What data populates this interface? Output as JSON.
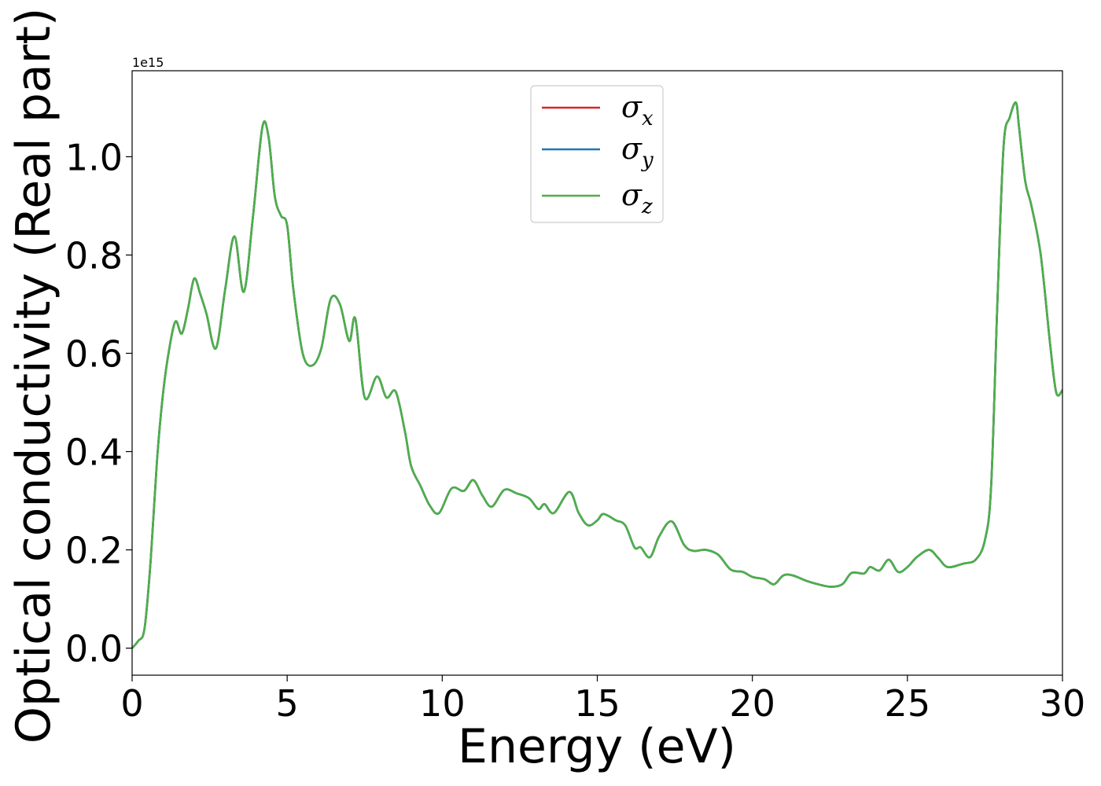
{
  "chart_data": {
    "type": "line",
    "xlabel": "Energy (eV)",
    "ylabel": "Optical conductivity (Real part)",
    "y_offset_text": "1e15",
    "xlim": [
      0,
      30
    ],
    "ylim": [
      -0.055,
      1.175
    ],
    "x_ticks": [
      0,
      5,
      10,
      15,
      20,
      25,
      30
    ],
    "x_tick_labels": [
      "0",
      "5",
      "10",
      "15",
      "20",
      "25",
      "30"
    ],
    "y_ticks": [
      0.0,
      0.2,
      0.4,
      0.6,
      0.8,
      1.0
    ],
    "y_tick_labels": [
      "0.0",
      "0.2",
      "0.4",
      "0.6",
      "0.8",
      "1.0"
    ],
    "grid": false,
    "legend_position": "top-center",
    "series": [
      {
        "name": "σ",
        "subscript": "x",
        "color": "#d62728"
      },
      {
        "name": "σ",
        "subscript": "y",
        "color": "#1f77b4"
      },
      {
        "name": "σ",
        "subscript": "z",
        "color": "#4daf4a"
      }
    ],
    "x": [
      0,
      0.2,
      0.4,
      0.6,
      0.8,
      1.0,
      1.2,
      1.4,
      1.6,
      1.8,
      2.0,
      2.2,
      2.4,
      2.7,
      3.0,
      3.3,
      3.6,
      3.9,
      4.2,
      4.4,
      4.6,
      4.8,
      5.0,
      5.2,
      5.5,
      5.8,
      6.1,
      6.4,
      6.7,
      7.0,
      7.2,
      7.5,
      7.9,
      8.2,
      8.5,
      8.8,
      9.0,
      9.3,
      9.6,
      9.9,
      10.3,
      10.7,
      11.0,
      11.3,
      11.6,
      12.0,
      12.4,
      12.8,
      13.1,
      13.3,
      13.6,
      14.1,
      14.4,
      14.7,
      15.0,
      15.2,
      15.6,
      15.9,
      16.2,
      16.4,
      16.7,
      17.0,
      17.4,
      17.8,
      18.1,
      18.5,
      18.9,
      19.3,
      19.7,
      20.0,
      20.4,
      20.7,
      21.0,
      21.3,
      21.7,
      22.0,
      22.5,
      22.9,
      23.2,
      23.6,
      23.8,
      24.1,
      24.4,
      24.7,
      25.0,
      25.3,
      25.7,
      26.0,
      26.3,
      26.8,
      27.2,
      27.5,
      27.7,
      27.9,
      28.1,
      28.3,
      28.5,
      28.6,
      28.8,
      29.0,
      29.3,
      29.6,
      29.8,
      30.0
    ],
    "values": [
      0.0,
      0.015,
      0.04,
      0.18,
      0.38,
      0.52,
      0.61,
      0.665,
      0.64,
      0.69,
      0.752,
      0.72,
      0.68,
      0.61,
      0.73,
      0.838,
      0.725,
      0.88,
      1.06,
      1.04,
      0.92,
      0.88,
      0.86,
      0.73,
      0.6,
      0.575,
      0.61,
      0.71,
      0.7,
      0.625,
      0.67,
      0.51,
      0.553,
      0.51,
      0.522,
      0.44,
      0.37,
      0.33,
      0.29,
      0.275,
      0.325,
      0.32,
      0.342,
      0.31,
      0.288,
      0.322,
      0.315,
      0.305,
      0.283,
      0.293,
      0.275,
      0.318,
      0.275,
      0.25,
      0.26,
      0.273,
      0.26,
      0.25,
      0.205,
      0.205,
      0.185,
      0.228,
      0.258,
      0.21,
      0.198,
      0.2,
      0.19,
      0.16,
      0.155,
      0.145,
      0.14,
      0.13,
      0.148,
      0.148,
      0.138,
      0.132,
      0.125,
      0.13,
      0.153,
      0.152,
      0.165,
      0.158,
      0.18,
      0.155,
      0.165,
      0.185,
      0.2,
      0.183,
      0.165,
      0.172,
      0.18,
      0.22,
      0.33,
      0.7,
      1.02,
      1.08,
      1.11,
      1.06,
      0.95,
      0.9,
      0.8,
      0.62,
      0.52,
      0.525
    ]
  },
  "legend": {
    "items": [
      {
        "symbol": "σ",
        "sub": "x"
      },
      {
        "symbol": "σ",
        "sub": "y"
      },
      {
        "symbol": "σ",
        "sub": "z"
      }
    ]
  }
}
